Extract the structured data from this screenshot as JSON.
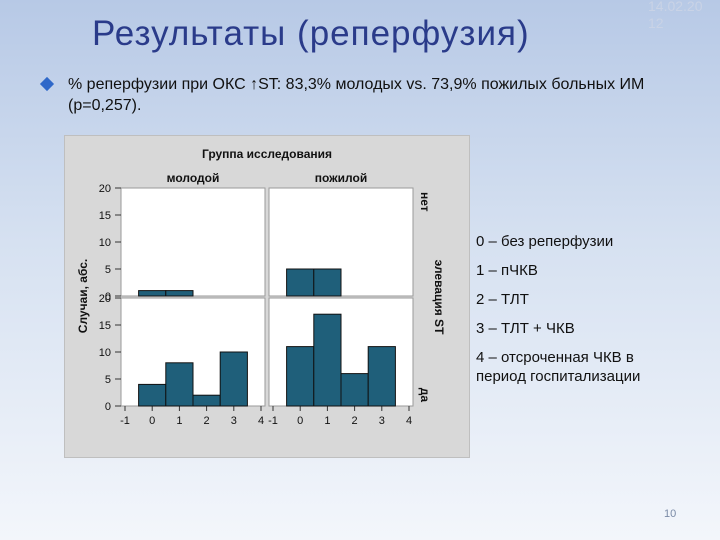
{
  "slide": {
    "title": "Результаты (реперфузия)",
    "date": "14.02.20 12",
    "bullet": "% реперфузии при ОКС ↑ST: 83,3% молодых vs. 73,9% пожилых больных ИМ (р=0,257).",
    "page_number": "10"
  },
  "legend": [
    "0 – без реперфузии",
    "1 – пЧКВ",
    "2 – ТЛТ",
    "3 – ТЛТ + ЧКВ",
    "4 – отсроченная ЧКВ в период госпитализации"
  ],
  "chart_data": {
    "type": "bar",
    "title": "Группа исследования",
    "column_labels": [
      "молодой",
      "пожилой"
    ],
    "row_title": "элевация ST",
    "row_labels": [
      "нет",
      "да"
    ],
    "ylabel": "Случаи, абс.",
    "ylim": [
      0,
      20
    ],
    "yticks": [
      "0",
      "5",
      "10",
      "15",
      "20"
    ],
    "xlim": [
      -1,
      4
    ],
    "xticks": [
      "-1",
      "0",
      "1",
      "2",
      "3",
      "4"
    ],
    "categories": [
      0,
      1,
      2,
      3
    ],
    "panels": [
      {
        "row": "нет",
        "column": "молодой",
        "values": [
          1,
          1,
          0,
          0
        ]
      },
      {
        "row": "нет",
        "column": "пожилой",
        "values": [
          5,
          5,
          0,
          0
        ]
      },
      {
        "row": "да",
        "column": "молодой",
        "values": [
          4,
          8,
          2,
          10
        ]
      },
      {
        "row": "да",
        "column": "пожилой",
        "values": [
          11,
          17,
          6,
          11
        ]
      }
    ],
    "bar_color": "#1f5f7a",
    "background_color": "#d8d8d8",
    "panel_color": "#ffffff"
  }
}
